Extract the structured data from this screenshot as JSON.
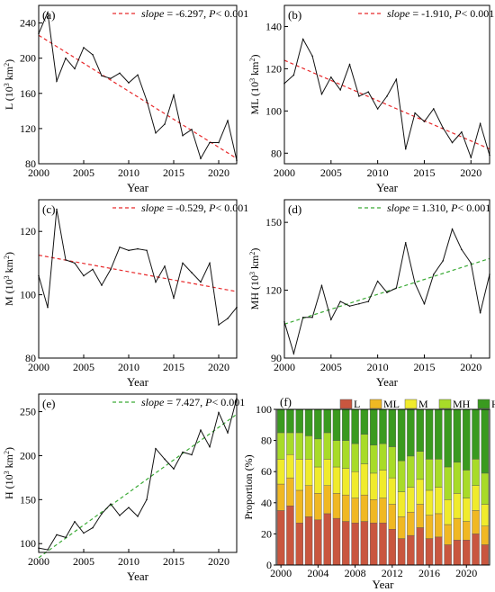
{
  "chart_data": [
    {
      "id": "a",
      "type": "line",
      "panel_label": "(a)",
      "xlabel": "Year",
      "ylabel_main": "L (10",
      "ylabel_sup": "3",
      "ylabel_tail": " km",
      "ylabel_sup2": "2",
      "ylabel_end": ")",
      "x": [
        2000,
        2001,
        2002,
        2003,
        2004,
        2005,
        2006,
        2007,
        2008,
        2009,
        2010,
        2011,
        2012,
        2013,
        2014,
        2015,
        2016,
        2017,
        2018,
        2019,
        2020,
        2021,
        2022
      ],
      "values": [
        228,
        252,
        174,
        200,
        188,
        212,
        204,
        180,
        177,
        183,
        172,
        181,
        152,
        115,
        125,
        158,
        112,
        119,
        86,
        104,
        104,
        129,
        84
      ],
      "xlim": [
        2000,
        2022
      ],
      "ylim": [
        80,
        260
      ],
      "xticks": [
        2000,
        2005,
        2010,
        2015,
        2020
      ],
      "yticks": [
        80,
        120,
        160,
        200,
        240
      ],
      "trend": {
        "start": 226,
        "end": 86,
        "color": "#e8292b"
      },
      "legend": {
        "slope_word": "slope",
        "slope_text": " = -6.297, ",
        "p_word": "P",
        "p_text": "< 0.001"
      }
    },
    {
      "id": "b",
      "type": "line",
      "panel_label": "(b)",
      "xlabel": "Year",
      "ylabel_main": "ML (10",
      "ylabel_sup": "3",
      "ylabel_tail": " km",
      "ylabel_sup2": "2",
      "ylabel_end": ")",
      "x": [
        2000,
        2001,
        2002,
        2003,
        2004,
        2005,
        2006,
        2007,
        2008,
        2009,
        2010,
        2011,
        2012,
        2013,
        2014,
        2015,
        2016,
        2017,
        2018,
        2019,
        2020,
        2021,
        2022
      ],
      "values": [
        113,
        117,
        134,
        126,
        108,
        116,
        110,
        122,
        107,
        109,
        101,
        107,
        115,
        82,
        99,
        95,
        101,
        92,
        85,
        90,
        78,
        94,
        79
      ],
      "xlim": [
        2000,
        2022
      ],
      "ylim": [
        75,
        150
      ],
      "xticks": [
        2000,
        2005,
        2010,
        2015,
        2020
      ],
      "yticks": [
        80,
        100,
        120,
        140
      ],
      "trend": {
        "start": 124,
        "end": 82,
        "color": "#e8292b"
      },
      "legend": {
        "slope_word": "slope",
        "slope_text": " = -1.910, ",
        "p_word": "P",
        "p_text": "< 0.001"
      }
    },
    {
      "id": "c",
      "type": "line",
      "panel_label": "(c)",
      "xlabel": "Year",
      "ylabel_main": "M (10",
      "ylabel_sup": "3",
      "ylabel_tail": " km",
      "ylabel_sup2": "2",
      "ylabel_end": ")",
      "x": [
        2000,
        2001,
        2002,
        2003,
        2004,
        2005,
        2006,
        2007,
        2008,
        2009,
        2010,
        2011,
        2012,
        2013,
        2014,
        2015,
        2016,
        2017,
        2018,
        2019,
        2020,
        2021,
        2022
      ],
      "values": [
        106,
        96,
        127,
        111,
        110,
        106,
        108,
        103,
        108,
        115,
        114,
        114.5,
        114,
        104,
        109,
        99,
        110,
        107,
        104,
        110,
        90.5,
        92.5,
        96
      ],
      "xlim": [
        2000,
        2022
      ],
      "ylim": [
        80,
        130
      ],
      "xticks": [
        2000,
        2005,
        2010,
        2015,
        2020
      ],
      "yticks": [
        80,
        100,
        120
      ],
      "trend": {
        "start": 112.5,
        "end": 101,
        "color": "#e8292b"
      },
      "legend": {
        "slope_word": "slope",
        "slope_text": " = -0.529, ",
        "p_word": "P",
        "p_text": "< 0.001"
      }
    },
    {
      "id": "d",
      "type": "line",
      "panel_label": "(d)",
      "xlabel": "Year",
      "ylabel_main": "MH (10",
      "ylabel_sup": "3",
      "ylabel_tail": " km",
      "ylabel_sup2": "2",
      "ylabel_end": ")",
      "x": [
        2000,
        2001,
        2002,
        2003,
        2004,
        2005,
        2006,
        2007,
        2008,
        2009,
        2010,
        2011,
        2012,
        2013,
        2014,
        2015,
        2016,
        2017,
        2018,
        2019,
        2020,
        2021,
        2022
      ],
      "values": [
        106,
        92,
        108,
        108,
        122,
        107,
        115,
        113,
        114,
        115,
        124,
        119,
        121,
        141,
        123,
        114,
        127,
        133,
        147,
        138,
        132,
        110,
        127
      ],
      "xlim": [
        2000,
        2022
      ],
      "ylim": [
        90,
        160
      ],
      "xticks": [
        2000,
        2005,
        2010,
        2015,
        2020
      ],
      "yticks": [
        90,
        120,
        150
      ],
      "trend": {
        "start": 105,
        "end": 134,
        "color": "#3aaa35"
      },
      "legend": {
        "slope_word": "slope",
        "slope_text": " = 1.310, ",
        "p_word": "P",
        "p_text": "< 0.001"
      }
    },
    {
      "id": "e",
      "type": "line",
      "panel_label": "(e)",
      "xlabel": "Year",
      "ylabel_main": "H (10",
      "ylabel_sup": "3",
      "ylabel_tail": " km",
      "ylabel_sup2": "2",
      "ylabel_end": ")",
      "x": [
        2000,
        2001,
        2002,
        2003,
        2004,
        2005,
        2006,
        2007,
        2008,
        2009,
        2010,
        2011,
        2012,
        2013,
        2014,
        2015,
        2016,
        2017,
        2018,
        2019,
        2020,
        2021,
        2022
      ],
      "values": [
        95,
        93,
        110,
        107,
        125,
        112,
        118,
        134,
        145,
        132,
        141,
        131,
        150,
        208,
        196,
        185,
        204,
        201,
        229,
        210,
        249,
        226,
        265
      ],
      "xlim": [
        2000,
        2022
      ],
      "ylim": [
        90,
        270
      ],
      "xticks": [
        2000,
        2005,
        2010,
        2015,
        2020
      ],
      "yticks": [
        100,
        150,
        200,
        250
      ],
      "trend": {
        "start": 84,
        "end": 247,
        "color": "#3aaa35"
      },
      "legend": {
        "slope_word": "slope",
        "slope_text": " = 7.427, ",
        "p_word": "P",
        "p_text": "< 0.001"
      }
    },
    {
      "id": "f",
      "type": "bar",
      "stacked": true,
      "panel_label": "(f)",
      "xlabel": "Year",
      "ylabel": "Proportion (%)",
      "categories": [
        2000,
        2001,
        2002,
        2003,
        2004,
        2005,
        2006,
        2007,
        2008,
        2009,
        2010,
        2011,
        2012,
        2013,
        2014,
        2015,
        2016,
        2017,
        2018,
        2019,
        2020,
        2021,
        2022
      ],
      "xticks": [
        2000,
        2004,
        2008,
        2012,
        2016,
        2020
      ],
      "ylim": [
        0,
        100
      ],
      "yticks": [
        0,
        20,
        40,
        60,
        80,
        100
      ],
      "legend_position": "top",
      "series": [
        {
          "name": "L",
          "color": "#c9563f",
          "values": [
            35,
            38,
            27,
            31,
            29,
            33,
            30,
            28,
            27,
            28,
            27,
            27,
            23,
            17,
            19,
            24,
            17,
            18,
            13,
            16,
            16,
            20,
            13
          ]
        },
        {
          "name": "ML",
          "color": "#f0b823",
          "values": [
            17,
            18,
            21,
            20,
            17,
            18,
            16,
            17,
            16,
            17,
            15,
            16,
            16,
            14,
            15,
            15,
            15,
            15,
            13,
            14,
            12,
            15,
            12
          ]
        },
        {
          "name": "M",
          "color": "#f0eb2c",
          "values": [
            16,
            15,
            20,
            17,
            17,
            17,
            17,
            17,
            17,
            20,
            17,
            18,
            17,
            16,
            16,
            16,
            16,
            17,
            16,
            16,
            15,
            16,
            14
          ]
        },
        {
          "name": "MH",
          "color": "#a8db28",
          "values": [
            17,
            14,
            17,
            15,
            18,
            17,
            17,
            18,
            18,
            19,
            18,
            17,
            20,
            20,
            20,
            18,
            20,
            18,
            21,
            20,
            18,
            17,
            20
          ]
        },
        {
          "name": "H",
          "color": "#3a9a1f",
          "values": [
            15,
            15,
            15,
            17,
            19,
            15,
            20,
            20,
            22,
            16,
            23,
            22,
            24,
            33,
            30,
            27,
            32,
            32,
            37,
            34,
            39,
            32,
            41
          ]
        }
      ]
    }
  ]
}
